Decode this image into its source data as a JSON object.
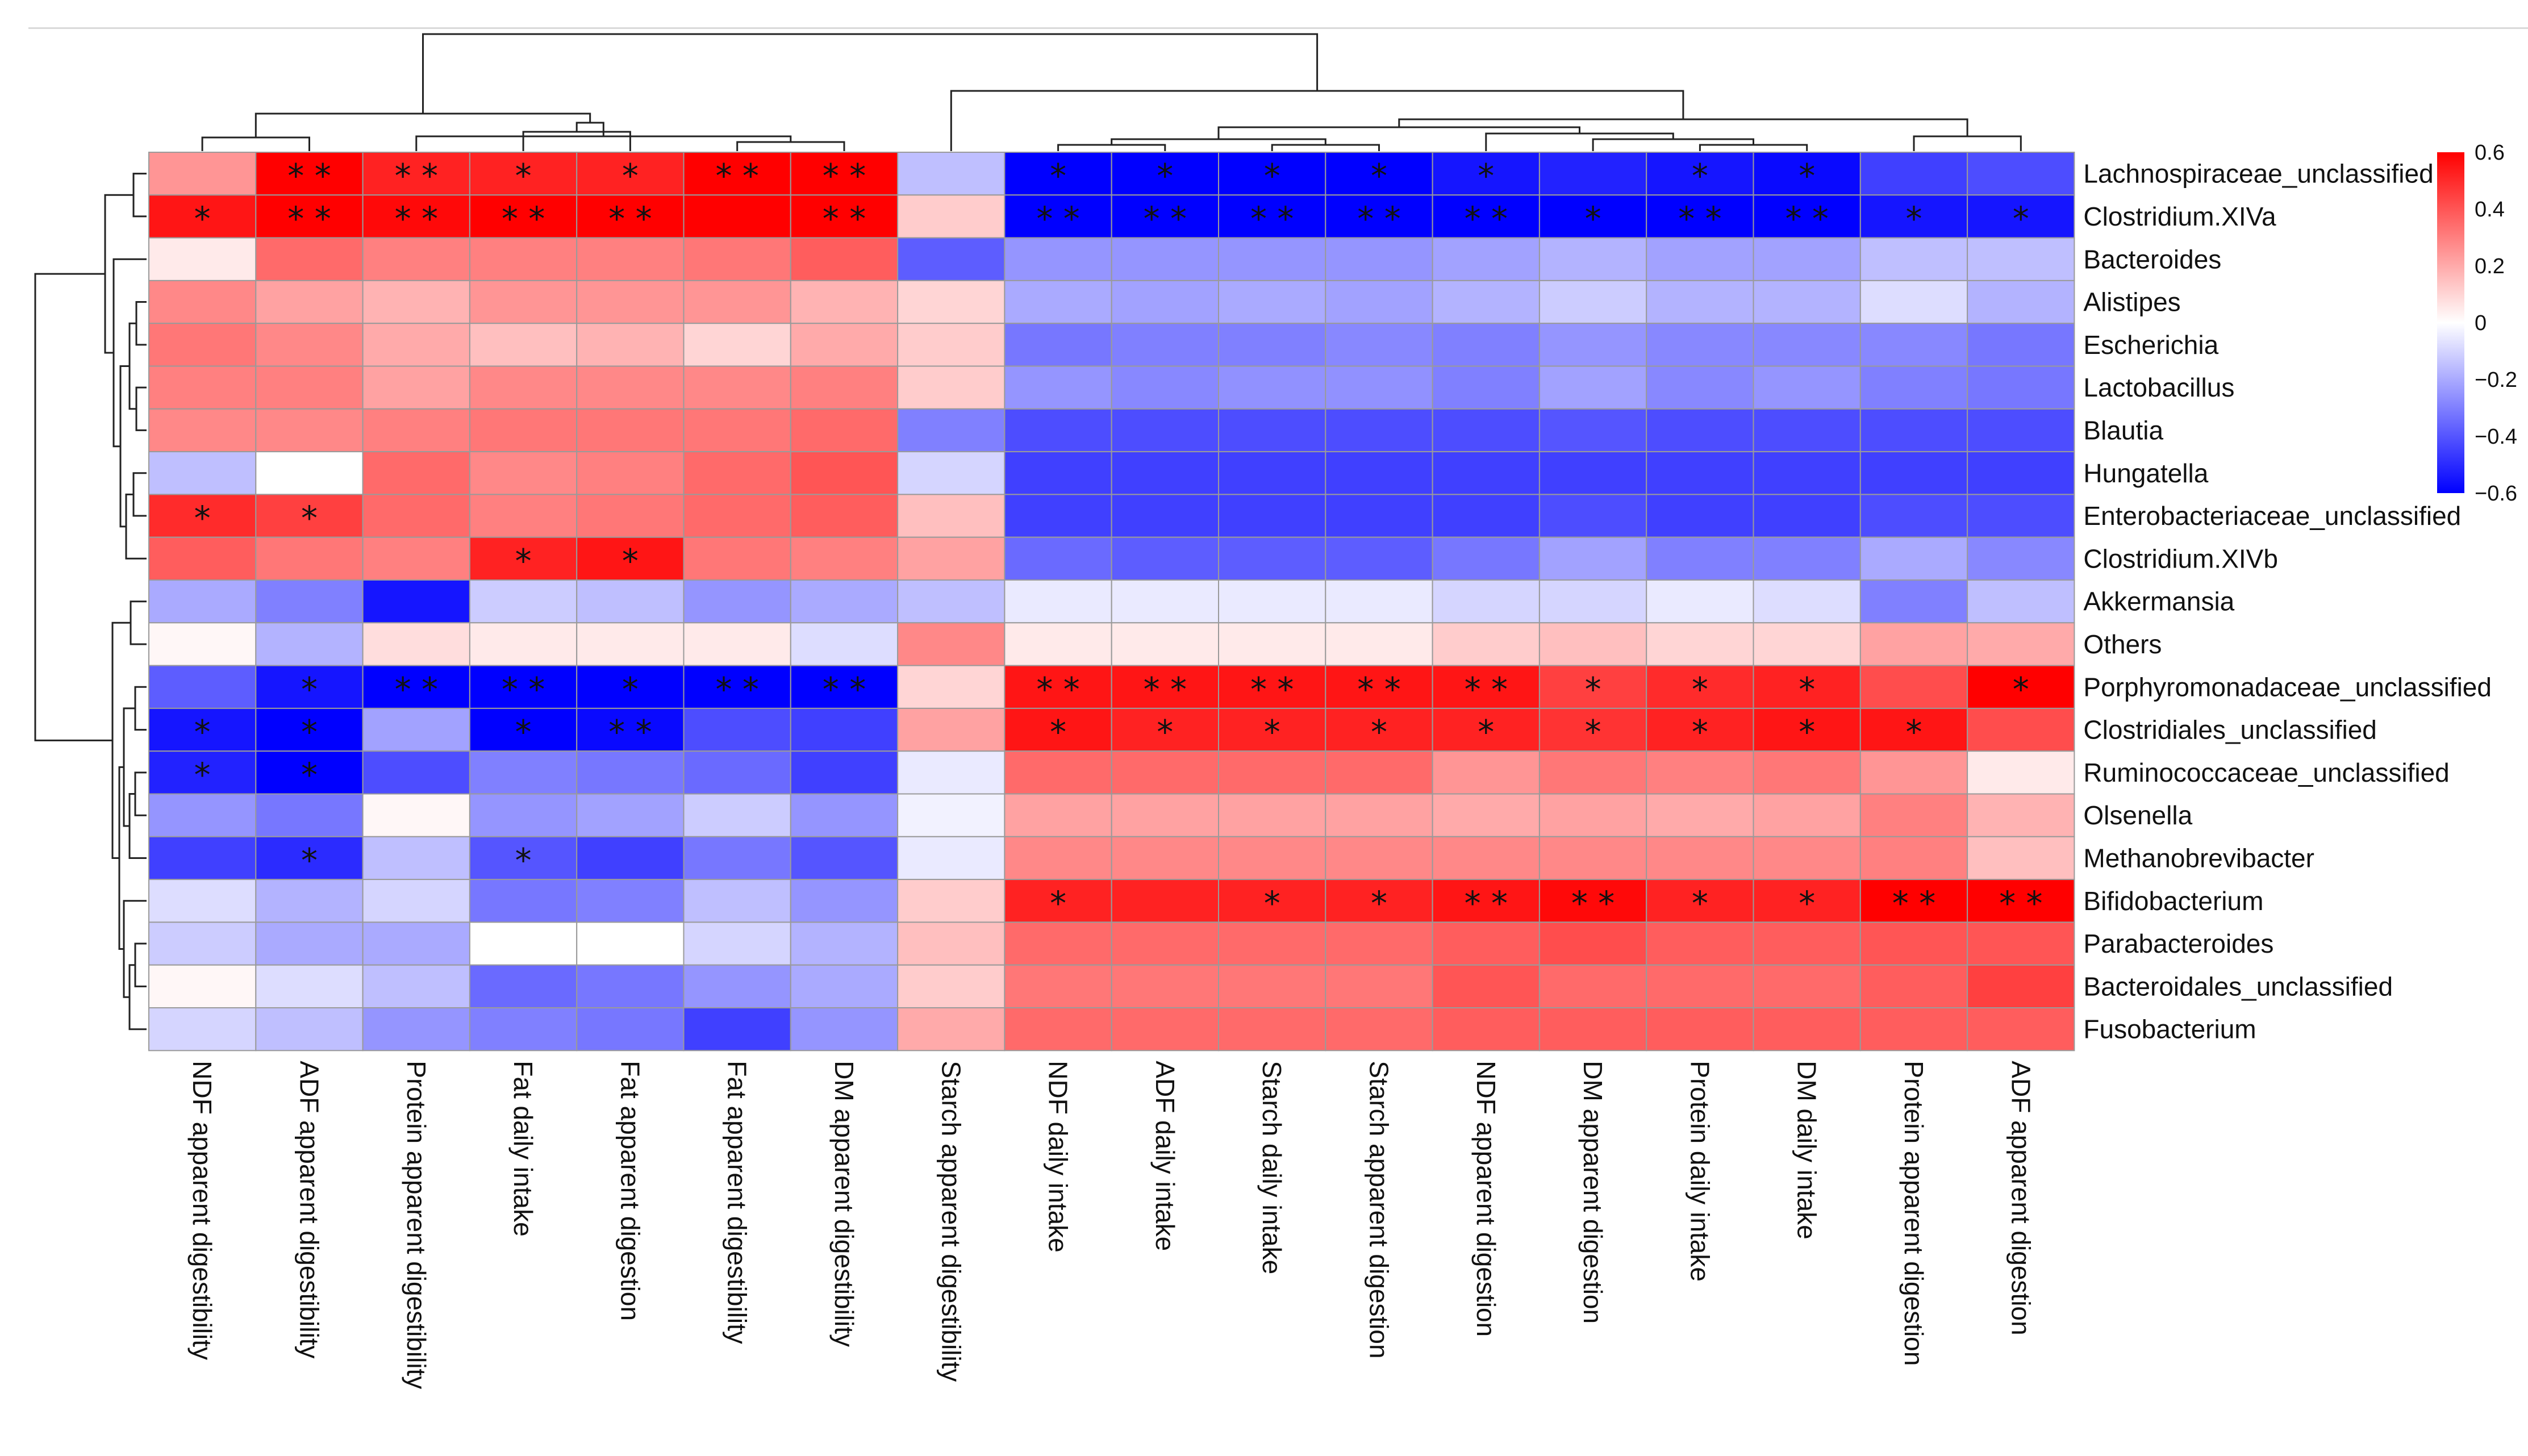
{
  "chart_data": {
    "type": "heatmap",
    "title": "",
    "xlabel": "",
    "ylabel": "",
    "rows": [
      "Lachnospiraceae_unclassified",
      "Clostridium.XIVa",
      "Bacteroides",
      "Alistipes",
      "Escherichia",
      "Lactobacillus",
      "Blautia",
      "Hungatella",
      "Enterobacteriaceae_unclassified",
      "Clostridium.XIVb",
      "Akkermansia",
      "Others",
      "Porphyromonadaceae_unclassified",
      "Clostridiales_unclassified",
      "Ruminococcaceae_unclassified",
      "Olsenella",
      "Methanobrevibacter",
      "Bifidobacterium",
      "Parabacteroides",
      "Bacteroidales_unclassified",
      "Fusobacterium"
    ],
    "columns": [
      "NDF apparent digestibility",
      "ADF apparent digestibility",
      "Protein apparent digestibility",
      "Fat daily intake",
      "Fat apparent digestion",
      "Fat apparent digestibility",
      "DM apparent digestibility",
      "Starch apparent digestibility",
      "NDF daily intake",
      "ADF daily intake",
      "Starch daily intake",
      "Starch apparent digestion",
      "NDF apparent digestion",
      "DM apparent digestion",
      "Protein daily intake",
      "DM daily intake",
      "Protein apparent digestion",
      "ADF apparent digestion"
    ],
    "values": [
      [
        0.25,
        0.6,
        0.52,
        0.52,
        0.52,
        0.62,
        0.62,
        -0.15,
        -0.65,
        -0.62,
        -0.62,
        -0.62,
        -0.55,
        -0.52,
        -0.55,
        -0.58,
        -0.45,
        -0.42
      ],
      [
        0.55,
        0.62,
        0.58,
        0.6,
        0.6,
        0.62,
        0.62,
        0.12,
        -0.7,
        -0.7,
        -0.7,
        -0.7,
        -0.68,
        -0.6,
        -0.68,
        -0.68,
        -0.55,
        -0.55
      ],
      [
        0.05,
        0.35,
        0.3,
        0.3,
        0.3,
        0.32,
        0.38,
        -0.38,
        -0.25,
        -0.25,
        -0.25,
        -0.25,
        -0.22,
        -0.18,
        -0.22,
        -0.22,
        -0.15,
        -0.15
      ],
      [
        0.28,
        0.22,
        0.18,
        0.25,
        0.25,
        0.25,
        0.18,
        0.1,
        -0.2,
        -0.22,
        -0.2,
        -0.22,
        -0.18,
        -0.12,
        -0.18,
        -0.18,
        -0.08,
        -0.18
      ],
      [
        0.32,
        0.28,
        0.2,
        0.15,
        0.18,
        0.1,
        0.2,
        0.12,
        -0.32,
        -0.3,
        -0.3,
        -0.28,
        -0.3,
        -0.25,
        -0.28,
        -0.28,
        -0.28,
        -0.32
      ],
      [
        0.3,
        0.3,
        0.22,
        0.28,
        0.28,
        0.28,
        0.3,
        0.12,
        -0.25,
        -0.28,
        -0.26,
        -0.26,
        -0.3,
        -0.22,
        -0.28,
        -0.25,
        -0.3,
        -0.32
      ],
      [
        0.28,
        0.28,
        0.3,
        0.32,
        0.32,
        0.32,
        0.35,
        -0.3,
        -0.42,
        -0.42,
        -0.42,
        -0.42,
        -0.42,
        -0.4,
        -0.42,
        -0.42,
        -0.42,
        -0.42
      ],
      [
        -0.15,
        0.0,
        0.35,
        0.28,
        0.3,
        0.35,
        0.4,
        -0.1,
        -0.45,
        -0.45,
        -0.45,
        -0.45,
        -0.45,
        -0.45,
        -0.45,
        -0.45,
        -0.45,
        -0.45
      ],
      [
        0.5,
        0.45,
        0.35,
        0.3,
        0.32,
        0.35,
        0.38,
        0.15,
        -0.45,
        -0.45,
        -0.45,
        -0.45,
        -0.45,
        -0.42,
        -0.45,
        -0.45,
        -0.42,
        -0.42
      ],
      [
        0.38,
        0.32,
        0.3,
        0.52,
        0.55,
        0.32,
        0.3,
        0.22,
        -0.35,
        -0.38,
        -0.38,
        -0.38,
        -0.32,
        -0.22,
        -0.3,
        -0.3,
        -0.2,
        -0.28
      ],
      [
        -0.2,
        -0.3,
        -0.55,
        -0.12,
        -0.15,
        -0.25,
        -0.2,
        -0.15,
        -0.05,
        -0.05,
        -0.05,
        -0.05,
        -0.1,
        -0.1,
        -0.05,
        -0.08,
        -0.3,
        -0.15
      ],
      [
        0.02,
        -0.18,
        0.08,
        0.05,
        0.05,
        0.05,
        -0.08,
        0.28,
        0.05,
        0.05,
        0.05,
        0.05,
        0.12,
        0.15,
        0.1,
        0.1,
        0.22,
        0.2
      ],
      [
        -0.38,
        -0.55,
        -0.62,
        -0.68,
        -0.68,
        -0.62,
        -0.62,
        0.1,
        0.55,
        0.55,
        0.55,
        0.55,
        0.55,
        0.45,
        0.5,
        0.52,
        0.42,
        0.6
      ],
      [
        -0.55,
        -0.65,
        -0.22,
        -0.62,
        -0.58,
        -0.42,
        -0.45,
        0.22,
        0.55,
        0.52,
        0.52,
        0.52,
        0.52,
        0.48,
        0.52,
        0.55,
        0.55,
        0.42
      ],
      [
        -0.52,
        -0.6,
        -0.42,
        -0.3,
        -0.32,
        -0.35,
        -0.45,
        -0.05,
        0.35,
        0.35,
        0.35,
        0.35,
        0.25,
        0.32,
        0.3,
        0.32,
        0.25,
        0.05
      ],
      [
        -0.25,
        -0.32,
        0.02,
        -0.25,
        -0.22,
        -0.12,
        -0.25,
        -0.03,
        0.22,
        0.22,
        0.22,
        0.22,
        0.2,
        0.22,
        0.2,
        0.22,
        0.3,
        0.18
      ],
      [
        -0.45,
        -0.5,
        -0.15,
        -0.4,
        -0.45,
        -0.32,
        -0.4,
        -0.05,
        0.28,
        0.28,
        0.28,
        0.28,
        0.28,
        0.28,
        0.28,
        0.28,
        0.3,
        0.15
      ],
      [
        -0.08,
        -0.18,
        -0.1,
        -0.32,
        -0.3,
        -0.15,
        -0.25,
        0.12,
        0.52,
        0.52,
        0.52,
        0.52,
        0.55,
        0.58,
        0.52,
        0.52,
        0.65,
        0.62
      ],
      [
        -0.12,
        -0.2,
        -0.2,
        0.0,
        0.0,
        -0.1,
        -0.18,
        0.15,
        0.35,
        0.35,
        0.35,
        0.35,
        0.38,
        0.42,
        0.38,
        0.38,
        0.4,
        0.4
      ],
      [
        0.02,
        -0.08,
        -0.15,
        -0.35,
        -0.32,
        -0.25,
        -0.2,
        0.12,
        0.32,
        0.32,
        0.32,
        0.32,
        0.4,
        0.35,
        0.35,
        0.35,
        0.38,
        0.45
      ],
      [
        -0.1,
        -0.15,
        -0.25,
        -0.3,
        -0.32,
        -0.45,
        -0.25,
        0.2,
        0.35,
        0.35,
        0.35,
        0.35,
        0.38,
        0.38,
        0.38,
        0.38,
        0.38,
        0.38
      ]
    ],
    "significance": [
      [
        "",
        "* *",
        "* *",
        "*",
        "*",
        "* *",
        "* *",
        "",
        "*",
        "*",
        "*",
        "*",
        "*",
        "",
        "*",
        "*",
        "",
        ""
      ],
      [
        "*",
        "* *",
        "* *",
        "* *",
        "* *",
        "",
        "* *",
        "",
        "* *",
        "* *",
        "* *",
        "* *",
        "* *",
        "*",
        "* *",
        "* *",
        "*",
        "*"
      ],
      [
        "",
        "",
        "",
        "",
        "",
        "",
        "",
        "",
        "",
        "",
        "",
        "",
        "",
        "",
        "",
        "",
        "",
        ""
      ],
      [
        "",
        "",
        "",
        "",
        "",
        "",
        "",
        "",
        "",
        "",
        "",
        "",
        "",
        "",
        "",
        "",
        "",
        ""
      ],
      [
        "",
        "",
        "",
        "",
        "",
        "",
        "",
        "",
        "",
        "",
        "",
        "",
        "",
        "",
        "",
        "",
        "",
        ""
      ],
      [
        "",
        "",
        "",
        "",
        "",
        "",
        "",
        "",
        "",
        "",
        "",
        "",
        "",
        "",
        "",
        "",
        "",
        ""
      ],
      [
        "",
        "",
        "",
        "",
        "",
        "",
        "",
        "",
        "",
        "",
        "",
        "",
        "",
        "",
        "",
        "",
        "",
        ""
      ],
      [
        "",
        "",
        "",
        "",
        "",
        "",
        "",
        "",
        "",
        "",
        "",
        "",
        "",
        "",
        "",
        "",
        "",
        ""
      ],
      [
        "*",
        "*",
        "",
        "",
        "",
        "",
        "",
        "",
        "",
        "",
        "",
        "",
        "",
        "",
        "",
        "",
        "",
        ""
      ],
      [
        "",
        "",
        "",
        "*",
        "*",
        "",
        "",
        "",
        "",
        "",
        "",
        "",
        "",
        "",
        "",
        "",
        "",
        ""
      ],
      [
        "",
        "",
        "",
        "",
        "",
        "",
        "",
        "",
        "",
        "",
        "",
        "",
        "",
        "",
        "",
        "",
        "",
        ""
      ],
      [
        "",
        "",
        "",
        "",
        "",
        "",
        "",
        "",
        "",
        "",
        "",
        "",
        "",
        "",
        "",
        "",
        "",
        ""
      ],
      [
        "",
        "*",
        "* *",
        "* *",
        "*",
        "* *",
        "* *",
        "",
        "* *",
        "* *",
        "* *",
        "* *",
        "* *",
        "*",
        "*",
        "*",
        "",
        "*"
      ],
      [
        "*",
        "*",
        "",
        "*",
        "* *",
        "",
        "",
        "",
        "*",
        "*",
        "*",
        "*",
        "*",
        "*",
        "*",
        "*",
        "*",
        ""
      ],
      [
        "*",
        "*",
        "",
        "",
        "",
        "",
        "",
        "",
        "",
        "",
        "",
        "",
        "",
        "",
        "",
        "",
        "",
        ""
      ],
      [
        "",
        "",
        "",
        "",
        "",
        "",
        "",
        "",
        "",
        "",
        "",
        "",
        "",
        "",
        "",
        "",
        "",
        ""
      ],
      [
        "",
        "*",
        "",
        "*",
        "",
        "",
        "",
        "",
        "",
        "",
        "",
        "",
        "",
        "",
        "",
        "",
        "",
        ""
      ],
      [
        "",
        "",
        "",
        "",
        "",
        "",
        "",
        "",
        "*",
        "",
        "*",
        "*",
        "* *",
        "* *",
        "*",
        "*",
        "* *",
        "* *"
      ],
      [
        "",
        "",
        "",
        "",
        "",
        "",
        "",
        "",
        "",
        "",
        "",
        "",
        "",
        "",
        "",
        "",
        "",
        ""
      ],
      [
        "",
        "",
        "",
        "",
        "",
        "",
        "",
        "",
        "",
        "",
        "",
        "",
        "",
        "",
        "",
        "",
        "",
        ""
      ],
      [
        "",
        "",
        "",
        "",
        "",
        "",
        "",
        "",
        "",
        "",
        "",
        "",
        "",
        "",
        "",
        "",
        "",
        ""
      ]
    ],
    "color_scale": {
      "min": -0.6,
      "max": 0.6,
      "low_color": "#0000ff",
      "mid_color": "#ffffff",
      "high_color": "#ff0000"
    },
    "legend": {
      "placement": "right",
      "ticks": [
        "0.6",
        "0.4",
        "0.2",
        "0",
        "−0.2",
        "−0.4",
        "−0.6"
      ],
      "tick_values": [
        0.6,
        0.4,
        0.2,
        0,
        -0.2,
        -0.4,
        -0.6
      ]
    },
    "row_dendrogram": "left",
    "column_dendrogram": "top",
    "grid": true
  }
}
